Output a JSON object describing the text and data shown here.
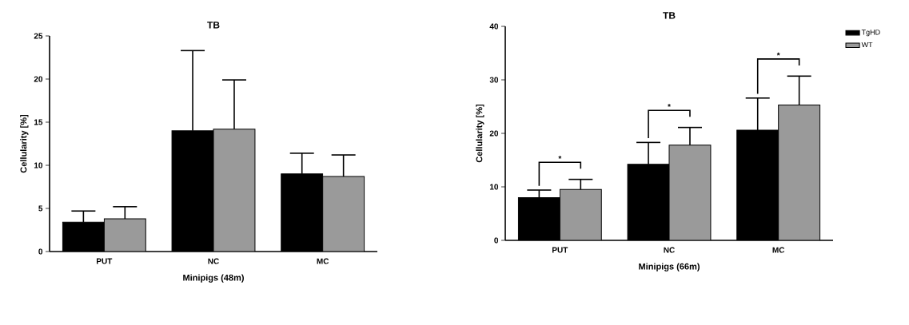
{
  "chart_data": [
    {
      "type": "bar",
      "title": "TB",
      "xlabel": "Minipigs (48m)",
      "ylabel": "Cellularity [%]",
      "categories": [
        "PUT",
        "NC",
        "MC"
      ],
      "ylim": [
        0,
        25
      ],
      "yticks": [
        0,
        5,
        10,
        15,
        20,
        25
      ],
      "series": [
        {
          "color": "#000000",
          "values": [
            3.4,
            14.0,
            9.0
          ],
          "errors": [
            [
              3.4,
              4.7
            ],
            [
              14.0,
              23.3
            ],
            [
              9.0,
              11.4
            ]
          ]
        },
        {
          "color": "#9a9a9a",
          "values": [
            3.8,
            14.2,
            8.7
          ],
          "errors": [
            [
              3.8,
              5.2
            ],
            [
              14.2,
              19.9
            ],
            [
              8.7,
              11.2
            ]
          ]
        }
      ]
    },
    {
      "type": "bar",
      "title": "TB",
      "xlabel": "Minipigs (66m)",
      "ylabel": "Cellularity [%]",
      "categories": [
        "PUT",
        "NC",
        "MC"
      ],
      "ylim": [
        0,
        40
      ],
      "yticks": [
        0,
        10,
        20,
        30,
        40
      ],
      "legend": "top right",
      "series": [
        {
          "name": "TgHD",
          "color": "#000000",
          "values": [
            8.0,
            14.2,
            20.6
          ],
          "errors": [
            [
              8.0,
              9.4
            ],
            [
              14.2,
              18.3
            ],
            [
              20.6,
              26.6
            ]
          ]
        },
        {
          "name": "WT",
          "color": "#9a9a9a",
          "values": [
            9.5,
            17.8,
            25.3
          ],
          "errors": [
            [
              9.5,
              11.4
            ],
            [
              17.8,
              21.1
            ],
            [
              25.3,
              30.7
            ]
          ]
        }
      ],
      "annotations": [
        "*",
        "*",
        "*"
      ]
    }
  ]
}
